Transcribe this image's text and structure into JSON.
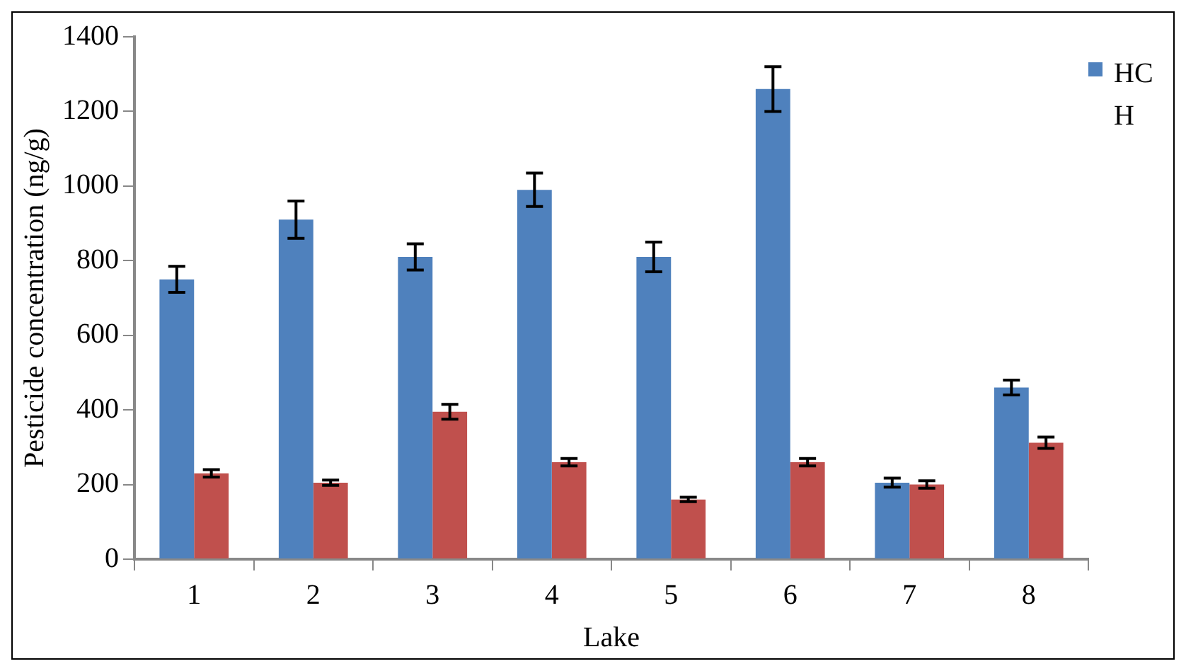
{
  "chart_data": {
    "type": "bar",
    "xlabel": "Lake",
    "ylabel": "Pesticide concentration (ng/g)",
    "categories": [
      "1",
      "2",
      "3",
      "4",
      "5",
      "6",
      "7",
      "8"
    ],
    "series": [
      {
        "name": "HCH",
        "color": "#4f81bd",
        "values": [
          750,
          910,
          810,
          990,
          810,
          1260,
          205,
          460
        ],
        "errors": [
          35,
          50,
          35,
          45,
          40,
          60,
          12,
          20
        ]
      },
      {
        "color": "#c0504d",
        "values": [
          230,
          205,
          395,
          260,
          160,
          260,
          200,
          312
        ],
        "errors": [
          10,
          7,
          20,
          10,
          6,
          10,
          10,
          15
        ]
      }
    ],
    "ylim": [
      0,
      1400
    ],
    "yticks": [
      0,
      200,
      400,
      600,
      800,
      1000,
      1200,
      1400
    ],
    "grid": false,
    "legend": "top right"
  }
}
